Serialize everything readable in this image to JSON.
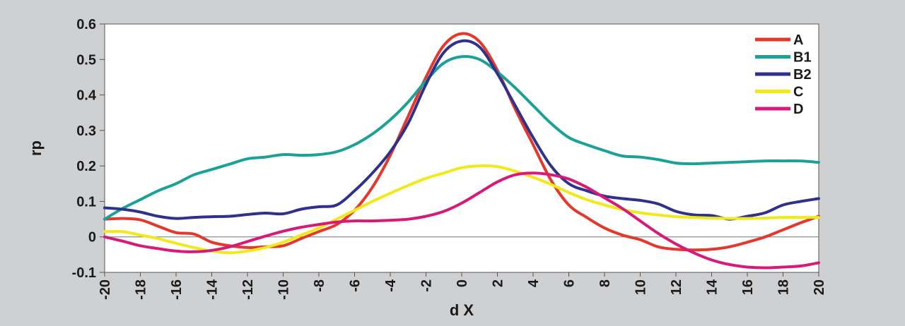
{
  "chart_data": {
    "type": "line",
    "title": "",
    "xlabel": "d X",
    "ylabel": "rp",
    "xlim": [
      -20,
      20
    ],
    "ylim": [
      -0.1,
      0.6
    ],
    "grid": false,
    "legend_position": "top-right",
    "x_ticks": [
      -20,
      -18,
      -16,
      -14,
      -12,
      -10,
      -8,
      -6,
      -4,
      -2,
      0,
      2,
      4,
      6,
      8,
      10,
      12,
      14,
      16,
      18,
      20
    ],
    "x_tick_labels": [
      "-20",
      "-18",
      "-16",
      "-14",
      "-12",
      "-10",
      "-8",
      "-6",
      "-4",
      "-2",
      "0",
      "2",
      "4",
      "6",
      "8",
      "10",
      "12",
      "14",
      "16",
      "18",
      "20"
    ],
    "y_ticks": [
      -0.1,
      0,
      0.1,
      0.2,
      0.3,
      0.4,
      0.5,
      0.6
    ],
    "y_tick_labels": [
      "-0.1",
      "0",
      "0.1",
      "0.2",
      "0.3",
      "0.4",
      "0.5",
      "0.6"
    ],
    "x": [
      -20,
      -19,
      -18,
      -17,
      -16,
      -15,
      -14,
      -13,
      -12,
      -11,
      -10,
      -9,
      -8,
      -7,
      -6,
      -5,
      -4,
      -3,
      -2,
      -1,
      0,
      1,
      2,
      3,
      4,
      5,
      6,
      7,
      8,
      9,
      10,
      11,
      12,
      13,
      14,
      15,
      16,
      17,
      18,
      19,
      20
    ],
    "series": [
      {
        "name": "A",
        "color": "#e5372a",
        "values": [
          0.05,
          0.052,
          0.048,
          0.03,
          0.012,
          0.008,
          -0.015,
          -0.025,
          -0.03,
          -0.028,
          -0.025,
          -0.005,
          0.015,
          0.035,
          0.075,
          0.14,
          0.23,
          0.34,
          0.45,
          0.54,
          0.573,
          0.55,
          0.47,
          0.36,
          0.26,
          0.16,
          0.09,
          0.055,
          0.025,
          0.005,
          -0.008,
          -0.028,
          -0.035,
          -0.037,
          -0.035,
          -0.028,
          -0.015,
          0.0,
          0.02,
          0.04,
          0.058
        ]
      },
      {
        "name": "B1",
        "color": "#1aa198",
        "values": [
          0.05,
          0.08,
          0.105,
          0.13,
          0.15,
          0.175,
          0.19,
          0.205,
          0.22,
          0.225,
          0.232,
          0.23,
          0.232,
          0.24,
          0.26,
          0.29,
          0.33,
          0.38,
          0.44,
          0.49,
          0.508,
          0.5,
          0.465,
          0.42,
          0.37,
          0.32,
          0.28,
          0.26,
          0.243,
          0.228,
          0.225,
          0.218,
          0.208,
          0.206,
          0.208,
          0.21,
          0.212,
          0.214,
          0.214,
          0.214,
          0.21
        ]
      },
      {
        "name": "B2",
        "color": "#2e318e",
        "values": [
          0.082,
          0.078,
          0.07,
          0.058,
          0.052,
          0.055,
          0.057,
          0.058,
          0.063,
          0.067,
          0.065,
          0.078,
          0.085,
          0.09,
          0.13,
          0.18,
          0.24,
          0.32,
          0.43,
          0.52,
          0.552,
          0.535,
          0.46,
          0.37,
          0.28,
          0.2,
          0.15,
          0.13,
          0.115,
          0.108,
          0.103,
          0.093,
          0.072,
          0.062,
          0.06,
          0.05,
          0.058,
          0.068,
          0.09,
          0.1,
          0.108
        ]
      },
      {
        "name": "C",
        "color": "#f2e918",
        "values": [
          0.015,
          0.015,
          0.005,
          -0.005,
          -0.018,
          -0.03,
          -0.04,
          -0.045,
          -0.04,
          -0.03,
          -0.015,
          0.005,
          0.025,
          0.05,
          0.075,
          0.1,
          0.123,
          0.145,
          0.165,
          0.18,
          0.195,
          0.2,
          0.198,
          0.185,
          0.168,
          0.148,
          0.125,
          0.105,
          0.09,
          0.077,
          0.068,
          0.062,
          0.057,
          0.055,
          0.053,
          0.052,
          0.052,
          0.053,
          0.055,
          0.055,
          0.055
        ]
      },
      {
        "name": "D",
        "color": "#d8197a",
        "values": [
          0.0,
          -0.012,
          -0.025,
          -0.033,
          -0.04,
          -0.042,
          -0.038,
          -0.028,
          -0.013,
          0.002,
          0.016,
          0.027,
          0.035,
          0.042,
          0.045,
          0.045,
          0.047,
          0.05,
          0.058,
          0.072,
          0.095,
          0.125,
          0.155,
          0.175,
          0.18,
          0.175,
          0.163,
          0.14,
          0.11,
          0.08,
          0.045,
          0.01,
          -0.02,
          -0.045,
          -0.065,
          -0.078,
          -0.085,
          -0.087,
          -0.085,
          -0.082,
          -0.073
        ]
      }
    ]
  }
}
